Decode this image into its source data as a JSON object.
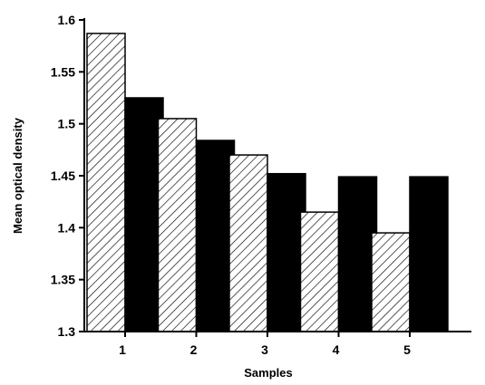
{
  "chart_data": {
    "type": "bar",
    "categories": [
      "1",
      "2",
      "3",
      "4",
      "5"
    ],
    "series": [
      {
        "values": [
          1.587,
          1.505,
          1.47,
          1.415,
          1.395
        ],
        "pattern": "hatched"
      },
      {
        "values": [
          1.525,
          1.484,
          1.452,
          1.449,
          1.449
        ],
        "pattern": "solid"
      }
    ],
    "xlabel": "Samples",
    "ylabel": "Mean optical density",
    "ylim": [
      1.3,
      1.6
    ],
    "yticks": [
      "1.3",
      "1.35",
      "1.4",
      "1.45",
      "1.5",
      "1.55",
      "1.6"
    ],
    "grid": false,
    "colors": {
      "solid": "#000000",
      "hatch": "#000000",
      "background": "#ffffff"
    }
  }
}
